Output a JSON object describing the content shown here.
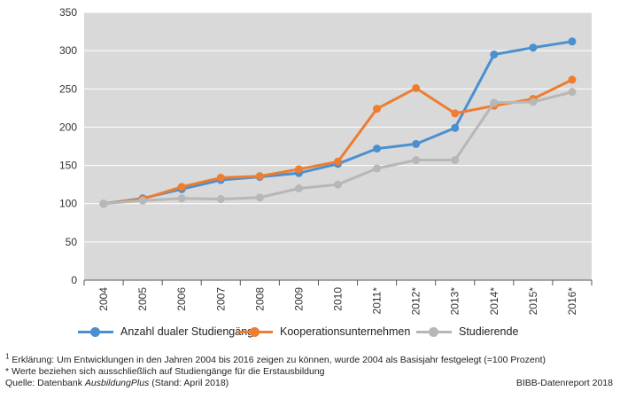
{
  "chart_data": {
    "type": "line",
    "categories": [
      "2004",
      "2005",
      "2006",
      "2007",
      "2008",
      "2009",
      "2010",
      "2011*",
      "2012*",
      "2013*",
      "2014*",
      "2015*",
      "2016*"
    ],
    "series": [
      {
        "name": "Anzahl dualer Studiengänge",
        "color": "#4a90d0",
        "values": [
          100,
          107,
          119,
          131,
          135,
          140,
          152,
          172,
          178,
          199,
          295,
          304,
          312
        ]
      },
      {
        "name": "Kooperationsunternehmen",
        "color": "#ed7d31",
        "values": [
          100,
          106,
          122,
          134,
          136,
          145,
          155,
          224,
          251,
          218,
          228,
          237,
          262
        ]
      },
      {
        "name": "Studierende",
        "color": "#b7b7b7",
        "values": [
          100,
          104,
          107,
          106,
          108,
          120,
          125,
          146,
          157,
          157,
          232,
          233,
          246
        ]
      }
    ],
    "ylim": [
      0,
      350
    ],
    "yticks": [
      0,
      50,
      100,
      150,
      200,
      250,
      300,
      350
    ],
    "grid": true,
    "legend": "bottom",
    "title": "",
    "xlabel": "",
    "ylabel": ""
  },
  "footnotes": {
    "note1_marker": "1",
    "note1": " Erklärung: Um Entwicklungen in den Jahren 2004 bis 2016 zeigen zu können, wurde 2004 als Basisjahr festgelegt (=100 Prozent)",
    "note2": "* Werte beziehen sich ausschließlich auf Studiengänge für die Erstausbildung",
    "source_prefix": "Quelle: Datenbank ",
    "source_italic": "AusbildungPlus",
    "source_suffix": " (Stand: April 2018)",
    "credit": "BIBB-Datenreport 2018"
  }
}
